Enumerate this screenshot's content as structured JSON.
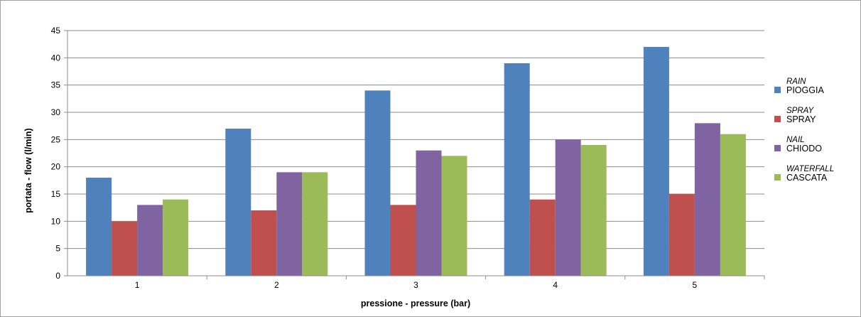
{
  "chart_data": {
    "type": "bar",
    "categories": [
      "1",
      "2",
      "3",
      "4",
      "5"
    ],
    "series": [
      {
        "name": "PIOGGIA",
        "name_en": "RAIN",
        "color": "#4f81bd",
        "values": [
          18,
          27,
          34,
          39,
          42
        ]
      },
      {
        "name": "SPRAY",
        "name_en": "SPRAY",
        "color": "#c0504d",
        "values": [
          10,
          12,
          13,
          14,
          15
        ]
      },
      {
        "name": "CHIODO",
        "name_en": "NAIL",
        "color": "#8064a2",
        "values": [
          13,
          19,
          23,
          25,
          28
        ]
      },
      {
        "name": "CASCATA",
        "name_en": "WATERFALL",
        "color": "#9bbb59",
        "values": [
          14,
          19,
          22,
          24,
          26
        ]
      }
    ],
    "xlabel": "pressione - pressure  (bar)",
    "ylabel": "portata - flow (l/min)",
    "ylim": [
      0,
      45
    ],
    "yticks": [
      0,
      5,
      10,
      15,
      20,
      25,
      30,
      35,
      40,
      45
    ],
    "grid": true,
    "legend_position": "right"
  }
}
